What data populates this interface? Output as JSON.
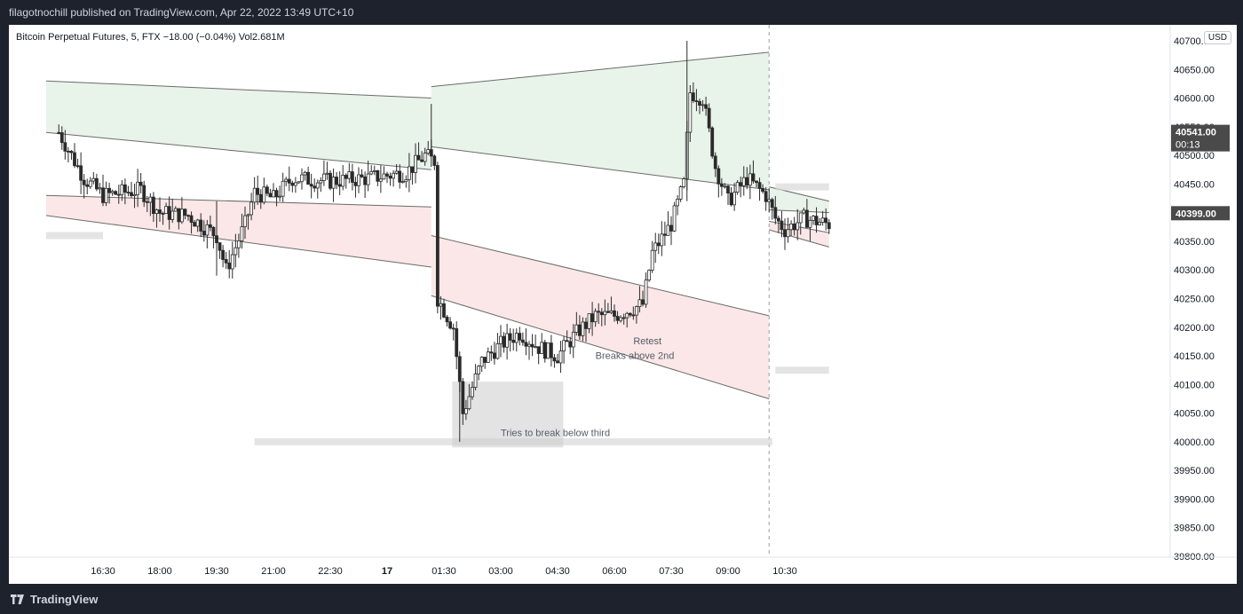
{
  "header": {
    "publish_text": "filagotnochill published on TradingView.com, Apr 22, 2022 13:49 UTC+10"
  },
  "legend": {
    "symbol": "Bitcoin Perpetual Futures, 5, FTX",
    "change": "−18.00 (−0.04%)",
    "volume": "Vol2.681M"
  },
  "currency_label": "USD",
  "footer": {
    "brand": "TradingView"
  },
  "colors": {
    "up": "#26a69a",
    "down": "#1e1e1e",
    "upper_band": "#e8f3ea",
    "lower_band": "#fbe7e7",
    "price_badge": "#4a4a4a"
  },
  "chart_data": {
    "type": "candlestick",
    "title": "Bitcoin Perpetual Futures, 5, FTX",
    "ylim": [
      39800,
      40700
    ],
    "y_ticks": [
      39800,
      39850,
      39900,
      39950,
      40000,
      40050,
      40100,
      40150,
      40200,
      40250,
      40300,
      40350,
      40400,
      40450,
      40500,
      40550,
      40600,
      40650,
      40700
    ],
    "y_tick_labels": [
      "39800.00",
      "39850.00",
      "39900.00",
      "39950.00",
      "40000.00",
      "40050.00",
      "40100.00",
      "40150.00",
      "40200.00",
      "40250.00",
      "40300.00",
      "40350.00",
      "40400.00",
      "40450.00",
      "40500.00",
      "40550.00",
      "40600.00",
      "40650.00",
      "40700.00"
    ],
    "x_ticks": [
      "16:30",
      "18:00",
      "19:30",
      "21:00",
      "22:30",
      "17",
      "01:30",
      "03:00",
      "04:30",
      "06:00",
      "07:30",
      "09:00",
      "10:30"
    ],
    "price_badges": [
      {
        "value": 40541.0,
        "label": "40541.00",
        "sublabel": "00:13"
      },
      {
        "value": 40399.0,
        "label": "40399.00"
      }
    ],
    "annotations": [
      {
        "text": "Retest",
        "x": "06:30",
        "y": 40170
      },
      {
        "text": "Breaks above 2nd",
        "x": "05:30",
        "y": 40145
      },
      {
        "text": "Tries to break below third",
        "x": "03:00",
        "y": 40010
      }
    ],
    "levels": [
      {
        "value": 40585,
        "from": "14:40",
        "to": "10:10"
      },
      {
        "value": 40360,
        "from": "15:00",
        "to": "16:30"
      },
      {
        "value": 40290,
        "from": "14:40",
        "to": "06:00"
      },
      {
        "value": 40000,
        "from": "20:30",
        "to": "10:10"
      },
      {
        "value": 40445,
        "from": "10:15",
        "to": "11:40"
      },
      {
        "value": 40125,
        "from": "10:15",
        "to": "11:40"
      }
    ],
    "bands": [
      {
        "name": "session1_upper",
        "from": "15:00",
        "to": "01:10",
        "top": [
          40630,
          40600
        ],
        "bottom": [
          40540,
          40475
        ]
      },
      {
        "name": "session1_lower",
        "from": "15:00",
        "to": "01:10",
        "top": [
          40430,
          40410
        ],
        "bottom": [
          40395,
          40305
        ]
      },
      {
        "name": "session2_upper",
        "from": "01:10",
        "to": "10:05",
        "top": [
          40620,
          40680
        ],
        "bottom": [
          40515,
          40440
        ]
      },
      {
        "name": "session2_lower",
        "from": "01:10",
        "to": "10:05",
        "top": [
          40360,
          40220
        ],
        "bottom": [
          40255,
          40075
        ]
      },
      {
        "name": "session3_upper",
        "from": "10:05",
        "to": "11:40",
        "top": [
          40445,
          40420
        ],
        "bottom": [
          40405,
          40400
        ]
      },
      {
        "name": "session3_lower",
        "from": "10:05",
        "to": "11:40",
        "top": [
          40385,
          40365
        ],
        "bottom": [
          40370,
          40340
        ]
      }
    ],
    "series": [
      {
        "name": "BTC-PERP",
        "ohlc_key_points": [
          {
            "t": "15:20",
            "price": 40540
          },
          {
            "t": "16:00",
            "price": 40460
          },
          {
            "t": "16:30",
            "price": 40430
          },
          {
            "t": "17:30",
            "price": 40440
          },
          {
            "t": "18:00",
            "price": 40400
          },
          {
            "t": "18:45",
            "price": 40395
          },
          {
            "t": "19:30",
            "price": 40360
          },
          {
            "t": "19:45",
            "price": 40300
          },
          {
            "t": "20:15",
            "price": 40380
          },
          {
            "t": "20:30",
            "price": 40435
          },
          {
            "t": "21:00",
            "price": 40425
          },
          {
            "t": "21:30",
            "price": 40460
          },
          {
            "t": "22:30",
            "price": 40455
          },
          {
            "t": "23:30",
            "price": 40460
          },
          {
            "t": "00:30",
            "price": 40470
          },
          {
            "t": "01:00",
            "price": 40500
          },
          {
            "t": "01:15",
            "price": 40490
          },
          {
            "t": "01:20",
            "price": 40250
          },
          {
            "t": "01:45",
            "price": 40200
          },
          {
            "t": "02:00",
            "price": 40050
          },
          {
            "t": "02:30",
            "price": 40140
          },
          {
            "t": "03:00",
            "price": 40170
          },
          {
            "t": "03:30",
            "price": 40190
          },
          {
            "t": "04:00",
            "price": 40165
          },
          {
            "t": "04:30",
            "price": 40150
          },
          {
            "t": "05:00",
            "price": 40190
          },
          {
            "t": "05:30",
            "price": 40220
          },
          {
            "t": "06:00",
            "price": 40220
          },
          {
            "t": "06:45",
            "price": 40240
          },
          {
            "t": "07:00",
            "price": 40330
          },
          {
            "t": "07:30",
            "price": 40380
          },
          {
            "t": "07:50",
            "price": 40450
          },
          {
            "t": "08:00",
            "price": 40610
          },
          {
            "t": "08:20",
            "price": 40600
          },
          {
            "t": "08:40",
            "price": 40480
          },
          {
            "t": "09:00",
            "price": 40420
          },
          {
            "t": "09:30",
            "price": 40460
          },
          {
            "t": "10:00",
            "price": 40430
          },
          {
            "t": "10:15",
            "price": 40390
          },
          {
            "t": "10:30",
            "price": 40370
          },
          {
            "t": "11:00",
            "price": 40390
          },
          {
            "t": "11:40",
            "price": 40380
          }
        ]
      }
    ]
  }
}
